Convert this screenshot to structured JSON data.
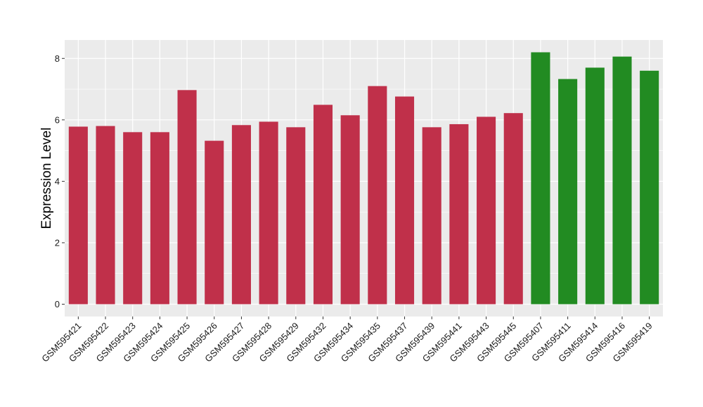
{
  "chart_data": {
    "type": "bar",
    "title": "",
    "xlabel": "",
    "ylabel": "Expression Level",
    "ylim": [
      -0.4,
      8.6
    ],
    "yticks": [
      0,
      2,
      4,
      6,
      8
    ],
    "grid": true,
    "legend": "none",
    "categories": [
      "GSM595421",
      "GSM595422",
      "GSM595423",
      "GSM595424",
      "GSM595425",
      "GSM595426",
      "GSM595427",
      "GSM595428",
      "GSM595429",
      "GSM595432",
      "GSM595434",
      "GSM595435",
      "GSM595437",
      "GSM595439",
      "GSM595441",
      "GSM595443",
      "GSM595445",
      "GSM595407",
      "GSM595411",
      "GSM595414",
      "GSM595416",
      "GSM595419"
    ],
    "values": [
      5.78,
      5.8,
      5.6,
      5.6,
      6.97,
      5.32,
      5.83,
      5.94,
      5.76,
      6.49,
      6.15,
      7.1,
      6.76,
      5.76,
      5.86,
      6.1,
      6.22,
      8.2,
      7.33,
      7.7,
      8.06,
      7.6
    ],
    "colors": [
      "#c0304a",
      "#c0304a",
      "#c0304a",
      "#c0304a",
      "#c0304a",
      "#c0304a",
      "#c0304a",
      "#c0304a",
      "#c0304a",
      "#c0304a",
      "#c0304a",
      "#c0304a",
      "#c0304a",
      "#c0304a",
      "#c0304a",
      "#c0304a",
      "#c0304a",
      "#228b22",
      "#228b22",
      "#228b22",
      "#228b22",
      "#228b22"
    ],
    "panel_color": "#ebebeb",
    "grid_color": "#ffffff"
  }
}
